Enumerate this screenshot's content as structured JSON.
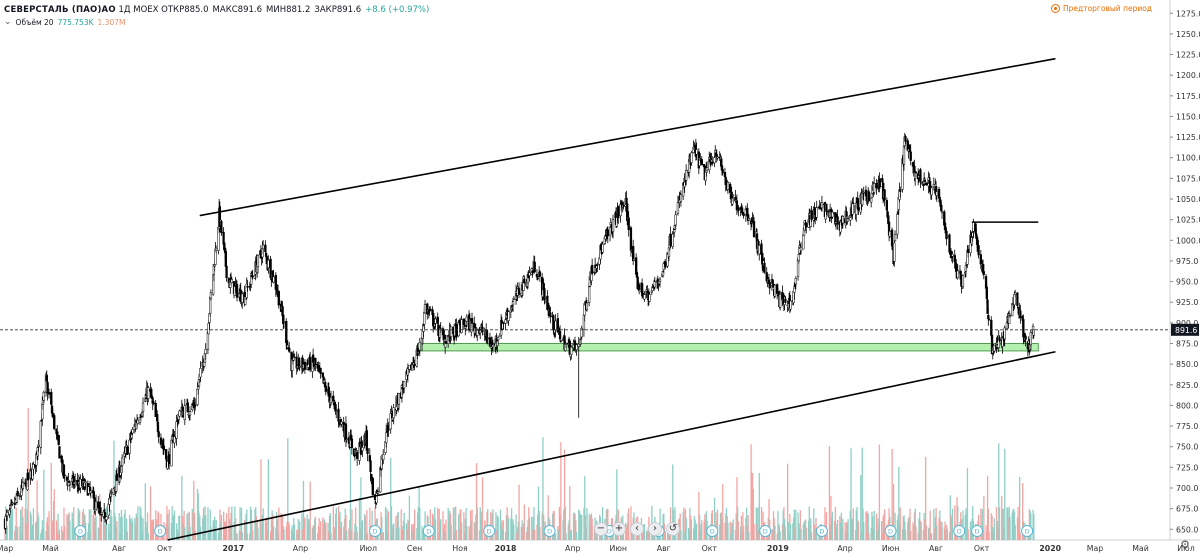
{
  "legend": {
    "symbol": "СЕВЕРСТАЛЬ (ПАО)АО",
    "interval": "1Д",
    "exchange": "MOEX",
    "open": "ОТКР885.0",
    "high": "МАКС891.6",
    "low": "МИН881.2",
    "close": "ЗАКР891.6",
    "change": "+8.6 (+0.97%)"
  },
  "volume": {
    "label": "Объём 20",
    "value": "775.753K",
    "ma": "1.307M"
  },
  "prev_period": "Предторговый период",
  "price_badge": "891.6",
  "colors": {
    "up": "#26a69a",
    "down": "#ef5350",
    "vol_up": "#8fcfc6",
    "vol_down": "#f3a5a3",
    "support": "#b5f0b0",
    "support_border": "#2d8a2d",
    "line": "#000000",
    "dividend": "#5bb8d6"
  },
  "chart_data": {
    "type": "candlestick",
    "y_ticks": [
      650,
      675,
      700,
      725,
      750,
      775,
      800,
      825,
      850,
      875,
      900,
      925,
      950,
      975,
      1000,
      1025,
      1050,
      1075,
      1100,
      1125,
      1150,
      1175,
      1200,
      1225,
      1250,
      1275
    ],
    "ylim": [
      637,
      1285
    ],
    "x_labels": [
      "Мар",
      "Май",
      "Авг",
      "Окт",
      "2017",
      "Апр",
      "Июл",
      "Сен",
      "Ноя",
      "2018",
      "Апр",
      "Июн",
      "Авг",
      "Окт",
      "2019",
      "Апр",
      "Июн",
      "Авг",
      "Окт",
      "2020",
      "Мар",
      "Май",
      "Июл"
    ],
    "bold_x_labels": [
      "2017",
      "2018",
      "2019",
      "2020"
    ],
    "anchors": [
      [
        "2016-03-01",
        660
      ],
      [
        "2016-04-10",
        725
      ],
      [
        "2016-04-25",
        830
      ],
      [
        "2016-05-20",
        710
      ],
      [
        "2016-06-20",
        700
      ],
      [
        "2016-07-10",
        660
      ],
      [
        "2016-07-25",
        700
      ],
      [
        "2016-08-20",
        770
      ],
      [
        "2016-09-10",
        820
      ],
      [
        "2016-09-20",
        780
      ],
      [
        "2016-10-05",
        730
      ],
      [
        "2016-10-20",
        790
      ],
      [
        "2016-11-10",
        800
      ],
      [
        "2016-11-25",
        870
      ],
      [
        "2016-12-05",
        960
      ],
      [
        "2016-12-13",
        1030
      ],
      [
        "2016-12-25",
        950
      ],
      [
        "2017-01-15",
        930
      ],
      [
        "2017-02-10",
        990
      ],
      [
        "2017-03-01",
        940
      ],
      [
        "2017-03-20",
        850
      ],
      [
        "2017-04-20",
        850
      ],
      [
        "2017-05-20",
        790
      ],
      [
        "2017-06-15",
        740
      ],
      [
        "2017-06-28",
        760
      ],
      [
        "2017-07-10",
        680
      ],
      [
        "2017-07-25",
        770
      ],
      [
        "2017-08-20",
        830
      ],
      [
        "2017-09-10",
        875
      ],
      [
        "2017-09-15",
        920
      ],
      [
        "2017-10-10",
        880
      ],
      [
        "2017-11-10",
        900
      ],
      [
        "2017-12-01",
        890
      ],
      [
        "2017-12-15",
        870
      ],
      [
        "2017-12-28",
        900
      ],
      [
        "2018-01-20",
        940
      ],
      [
        "2018-02-10",
        970
      ],
      [
        "2018-03-05",
        900
      ],
      [
        "2018-03-25",
        870
      ],
      [
        "2018-04-09",
        870
      ],
      [
        "2018-04-25",
        960
      ],
      [
        "2018-05-20",
        1010
      ],
      [
        "2018-06-10",
        1050
      ],
      [
        "2018-06-25",
        950
      ],
      [
        "2018-07-10",
        930
      ],
      [
        "2018-07-30",
        960
      ],
      [
        "2018-08-20",
        1040
      ],
      [
        "2018-09-10",
        1110
      ],
      [
        "2018-09-25",
        1080
      ],
      [
        "2018-10-10",
        1110
      ],
      [
        "2018-10-30",
        1050
      ],
      [
        "2018-11-25",
        1030
      ],
      [
        "2018-12-15",
        960
      ],
      [
        "2019-01-05",
        925
      ],
      [
        "2019-01-20",
        925
      ],
      [
        "2019-02-05",
        1020
      ],
      [
        "2019-03-01",
        1040
      ],
      [
        "2019-03-25",
        1020
      ],
      [
        "2019-04-25",
        1050
      ],
      [
        "2019-05-20",
        1070
      ],
      [
        "2019-06-05",
        980
      ],
      [
        "2019-06-20",
        1120
      ],
      [
        "2019-07-05",
        1080
      ],
      [
        "2019-08-01",
        1060
      ],
      [
        "2019-08-25",
        970
      ],
      [
        "2019-09-05",
        950
      ],
      [
        "2019-09-20",
        1020
      ],
      [
        "2019-10-05",
        950
      ],
      [
        "2019-10-15",
        870
      ],
      [
        "2019-10-30",
        880
      ],
      [
        "2019-11-15",
        935
      ],
      [
        "2019-11-25",
        895
      ],
      [
        "2019-12-03",
        870
      ],
      [
        "2019-12-10",
        891.6
      ]
    ],
    "wicks": [
      [
        "2016-12-13",
        1050
      ],
      [
        "2018-04-09",
        785
      ],
      [
        "2019-06-15",
        1120
      ]
    ],
    "last_price": 891.6,
    "trendlines": [
      {
        "start": [
          "2016-11-17",
          1030
        ],
        "end": [
          "2020-01-08",
          1220
        ]
      },
      {
        "start": [
          "2016-10-05",
          637
        ],
        "end": [
          "2020-01-08",
          865
        ]
      },
      {
        "start": [
          "2019-09-18",
          1022
        ],
        "end": [
          "2019-12-16",
          1022
        ]
      }
    ],
    "support_zone": {
      "start": "2017-09-05",
      "end": "2019-12-16",
      "low": 866,
      "high": 875
    },
    "dividend_dates": [
      "2016-06-10",
      "2016-09-25",
      "2017-07-10",
      "2017-09-20",
      "2017-12-10",
      "2018-03-01",
      "2018-05-20",
      "2018-07-25",
      "2018-10-05",
      "2018-12-15",
      "2019-03-01",
      "2019-06-01",
      "2019-09-01",
      "2019-09-25",
      "2019-12-01"
    ],
    "dividend_label": "D"
  }
}
